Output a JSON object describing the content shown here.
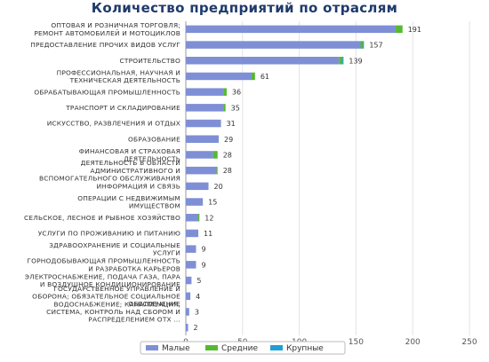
{
  "chart_data": {
    "type": "bar",
    "orientation": "horizontal",
    "stacked": true,
    "title": "Количество предприятий по отраслям",
    "categories": [
      [
        "ОПТОВАЯ И РОЗНИЧНАЯ ТОРГОВЛЯ;",
        "РЕМОНТ АВТОМОБИЛЕЙ И МОТОЦИКЛОВ"
      ],
      [
        "ПРЕДОСТАВЛЕНИЕ ПРОЧИХ ВИДОВ УСЛУГ"
      ],
      [
        "СТРОИТЕЛЬСТВО"
      ],
      [
        "ПРОФЕССИОНАЛЬНАЯ, НАУЧНАЯ И",
        "ТЕХНИЧЕСКАЯ ДЕЯТЕЛЬНОСТЬ"
      ],
      [
        "ОБРАБАТЫВАЮЩАЯ ПРОМЫШЛЕННОСТЬ"
      ],
      [
        "ТРАНСПОРТ И СКЛАДИРОВАНИЕ"
      ],
      [
        "ИСКУССТВО, РАЗВЛЕЧЕНИЯ И ОТДЫХ"
      ],
      [
        "ОБРАЗОВАНИЕ"
      ],
      [
        "ФИНАНСОВАЯ И СТРАХОВАЯ",
        "ДЕЯТЕЛЬНОСТЬ"
      ],
      [
        "ДЕЯТЕЛЬНОСТЬ В ОБЛАСТИ",
        "АДМИНИСТРАТИВНОГО И",
        "ВСПОМОГАТЕЛЬНОГО ОБСЛУЖИВАНИЯ"
      ],
      [
        "ИНФОРМАЦИЯ И СВЯЗЬ"
      ],
      [
        "ОПЕРАЦИИ С НЕДВИЖИМЫМ",
        "ИМУЩЕСТВОМ"
      ],
      [
        "СЕЛЬСКОЕ, ЛЕСНОЕ И РЫБНОЕ ХОЗЯЙСТВО"
      ],
      [
        "УСЛУГИ ПО ПРОЖИВАНИЮ И ПИТАНИЮ"
      ],
      [
        "ЗДРАВООХРАНЕНИЕ И СОЦИАЛЬНЫЕ",
        "УСЛУГИ"
      ],
      [
        "ГОРНОДОБЫВАЮЩАЯ ПРОМЫШЛЕННОСТЬ",
        "И РАЗРАБОТКА КАРЬЕРОВ"
      ],
      [
        "ЭЛЕКТРОСНАБЖЕНИЕ, ПОДАЧА ГАЗА, ПАРА",
        "И ВОЗДУШНОЕ КОНДИЦИОНИРОВАНИЕ"
      ],
      [
        "ГОСУДАРСТВЕННОЕ УПРАВЛЕНИЕ И",
        "ОБОРОНА; ОБЯЗАТЕЛЬНОЕ СОЦИАЛЬНОЕ",
        "ОБЕСПЕЧЕНИЕ"
      ],
      [
        "ВОДОСНАБЖЕНИЕ; КАНАЛИЗАЦИЯ,",
        "СИСТЕМА, КОНТРОЛЬ НАД СБОРОМ И",
        "РАСПРЕДЕЛЕНИЕМ ОТХ ..."
      ],
      [
        ""
      ]
    ],
    "totals": [
      191,
      157,
      139,
      61,
      36,
      35,
      31,
      29,
      28,
      28,
      20,
      15,
      12,
      11,
      9,
      9,
      5,
      4,
      3,
      2
    ],
    "series": [
      {
        "name": "Малые",
        "color": "#7f8fd6",
        "values": [
          185,
          154,
          135,
          58,
          33,
          33,
          31,
          29,
          24,
          27,
          20,
          15,
          11,
          11,
          9,
          9,
          5,
          4,
          3,
          2
        ]
      },
      {
        "name": "Средние",
        "color": "#55b932",
        "values": [
          6,
          2,
          3,
          3,
          3,
          2,
          0,
          0,
          4,
          1,
          0,
          0,
          1,
          0,
          0,
          0,
          0,
          0,
          0,
          0
        ]
      },
      {
        "name": "Крупные",
        "color": "#1f9fd6",
        "values": [
          0,
          1,
          1,
          0,
          0,
          0,
          0,
          0,
          0,
          0,
          0,
          0,
          0,
          0,
          0,
          0,
          0,
          0,
          0,
          0
        ]
      }
    ],
    "xlim": [
      0,
      250
    ],
    "xticks": [
      0,
      50,
      100,
      150,
      200,
      250
    ],
    "grid": true,
    "legend_position": "bottom"
  }
}
